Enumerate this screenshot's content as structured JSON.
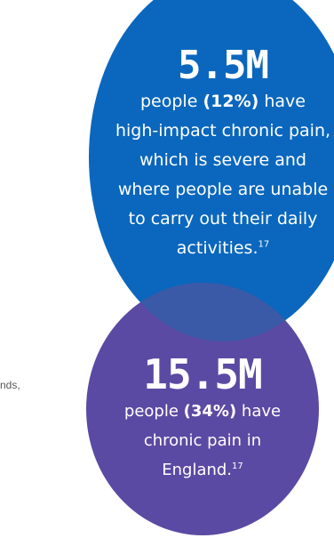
{
  "colors": {
    "blue_circle": "#0a67bd",
    "purple_circle": "#5b4aa3",
    "overlap": "#3a5aa8",
    "text_on_circle": "#ffffff"
  },
  "left_text_fragment": "nds,",
  "stats": {
    "high_impact": {
      "number": "5.5M",
      "line1_pre": "people ",
      "line1_bold": "(12%)",
      "line1_post": " have",
      "line2": "high-impact chronic pain,",
      "line3": "which is severe and",
      "line4": "where people are unable",
      "line5": "to carry out their daily",
      "line6": "activities.",
      "reference": "17"
    },
    "chronic": {
      "number": "15.5M",
      "line1_pre": "people ",
      "line1_bold": "(34%)",
      "line1_post": " have",
      "line2": "chronic pain in",
      "line3": "England.",
      "reference": "17"
    }
  }
}
